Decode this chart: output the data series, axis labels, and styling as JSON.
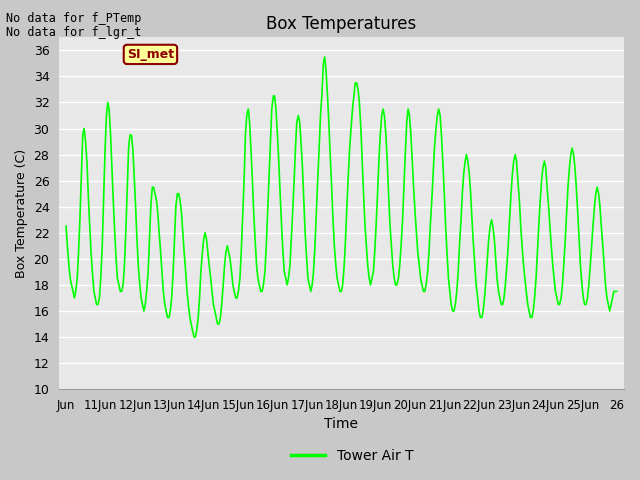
{
  "title": "Box Temperatures",
  "xlabel": "Time",
  "ylabel": "Box Temperature (C)",
  "ylim": [
    10,
    37
  ],
  "yticks": [
    10,
    12,
    14,
    16,
    18,
    20,
    22,
    24,
    26,
    28,
    30,
    32,
    34,
    36
  ],
  "line_color": "#00FF00",
  "line_width": 1.2,
  "plot_bg_color": "#E8E8E8",
  "fig_bg_color": "#C8C8C8",
  "no_data_text1": "No data for f_PTemp",
  "no_data_text2": "No data for f_lgr_t",
  "annotation_text": "SI_met",
  "annotation_bg": "#FFFF99",
  "annotation_border": "#8B0000",
  "legend_label": "Tower Air T",
  "x_tick_labels": [
    "Jun",
    "11Jun",
    "12Jun",
    "13Jun",
    "14Jun",
    "15Jun",
    "16Jun",
    "17Jun",
    "18Jun",
    "19Jun",
    "20Jun",
    "21Jun",
    "22Jun",
    "23Jun",
    "24Jun",
    "25Jun",
    "26"
  ],
  "temperature_data": [
    [
      0.0,
      22.5
    ],
    [
      0.08,
      21.0
    ],
    [
      0.17,
      19.5
    ],
    [
      0.25,
      18.5
    ],
    [
      0.33,
      18.0
    ],
    [
      0.42,
      17.5
    ],
    [
      0.5,
      17.0
    ],
    [
      0.58,
      17.5
    ],
    [
      0.67,
      18.5
    ],
    [
      0.75,
      20.5
    ],
    [
      0.83,
      23.0
    ],
    [
      0.92,
      26.5
    ],
    [
      1.0,
      29.5
    ],
    [
      1.08,
      30.0
    ],
    [
      1.17,
      29.0
    ],
    [
      1.25,
      27.5
    ],
    [
      1.33,
      25.0
    ],
    [
      1.42,
      22.5
    ],
    [
      1.5,
      20.5
    ],
    [
      1.58,
      19.0
    ],
    [
      1.67,
      17.5
    ],
    [
      1.75,
      17.0
    ],
    [
      1.83,
      16.5
    ],
    [
      1.92,
      16.5
    ],
    [
      2.0,
      17.0
    ],
    [
      2.08,
      18.5
    ],
    [
      2.17,
      21.0
    ],
    [
      2.25,
      24.5
    ],
    [
      2.33,
      28.0
    ],
    [
      2.42,
      31.0
    ],
    [
      2.5,
      32.0
    ],
    [
      2.58,
      31.5
    ],
    [
      2.67,
      29.5
    ],
    [
      2.75,
      27.0
    ],
    [
      2.83,
      24.5
    ],
    [
      2.92,
      22.0
    ],
    [
      3.0,
      20.0
    ],
    [
      3.08,
      18.5
    ],
    [
      3.17,
      18.0
    ],
    [
      3.25,
      17.5
    ],
    [
      3.33,
      17.5
    ],
    [
      3.42,
      18.0
    ],
    [
      3.5,
      19.5
    ],
    [
      3.58,
      22.0
    ],
    [
      3.67,
      25.5
    ],
    [
      3.75,
      28.5
    ],
    [
      3.83,
      29.5
    ],
    [
      3.92,
      29.5
    ],
    [
      4.0,
      28.5
    ],
    [
      4.08,
      26.5
    ],
    [
      4.17,
      24.0
    ],
    [
      4.25,
      21.5
    ],
    [
      4.33,
      19.5
    ],
    [
      4.42,
      18.0
    ],
    [
      4.5,
      17.0
    ],
    [
      4.58,
      16.5
    ],
    [
      4.67,
      16.0
    ],
    [
      4.75,
      16.5
    ],
    [
      4.83,
      17.5
    ],
    [
      4.92,
      19.0
    ],
    [
      5.0,
      21.5
    ],
    [
      5.08,
      24.0
    ],
    [
      5.17,
      25.5
    ],
    [
      5.25,
      25.5
    ],
    [
      5.33,
      25.0
    ],
    [
      5.42,
      24.5
    ],
    [
      5.5,
      23.5
    ],
    [
      5.58,
      22.0
    ],
    [
      5.67,
      20.5
    ],
    [
      5.75,
      19.0
    ],
    [
      5.83,
      17.5
    ],
    [
      5.92,
      16.5
    ],
    [
      6.0,
      16.0
    ],
    [
      6.08,
      15.5
    ],
    [
      6.17,
      15.5
    ],
    [
      6.25,
      16.0
    ],
    [
      6.33,
      17.0
    ],
    [
      6.42,
      19.0
    ],
    [
      6.5,
      21.5
    ],
    [
      6.58,
      24.0
    ],
    [
      6.67,
      25.0
    ],
    [
      6.75,
      25.0
    ],
    [
      6.83,
      24.5
    ],
    [
      6.92,
      23.5
    ],
    [
      7.0,
      22.0
    ],
    [
      7.08,
      20.5
    ],
    [
      7.17,
      19.0
    ],
    [
      7.25,
      17.5
    ],
    [
      7.33,
      16.5
    ],
    [
      7.42,
      15.5
    ],
    [
      7.5,
      15.0
    ],
    [
      7.58,
      14.5
    ],
    [
      7.67,
      14.0
    ],
    [
      7.75,
      14.0
    ],
    [
      7.83,
      14.5
    ],
    [
      7.92,
      15.5
    ],
    [
      8.0,
      17.0
    ],
    [
      8.08,
      19.0
    ],
    [
      8.17,
      20.5
    ],
    [
      8.25,
      21.5
    ],
    [
      8.33,
      22.0
    ],
    [
      8.42,
      21.5
    ],
    [
      8.5,
      20.5
    ],
    [
      8.58,
      19.5
    ],
    [
      8.67,
      18.5
    ],
    [
      8.75,
      17.5
    ],
    [
      8.83,
      16.5
    ],
    [
      8.92,
      16.0
    ],
    [
      9.0,
      15.5
    ],
    [
      9.08,
      15.0
    ],
    [
      9.17,
      15.0
    ],
    [
      9.25,
      15.5
    ],
    [
      9.33,
      16.5
    ],
    [
      9.42,
      18.0
    ],
    [
      9.5,
      19.5
    ],
    [
      9.58,
      20.5
    ],
    [
      9.67,
      21.0
    ],
    [
      9.75,
      20.5
    ],
    [
      9.83,
      20.0
    ],
    [
      9.92,
      19.0
    ],
    [
      10.0,
      18.0
    ],
    [
      10.08,
      17.5
    ],
    [
      10.17,
      17.0
    ],
    [
      10.25,
      17.0
    ],
    [
      10.33,
      17.5
    ],
    [
      10.42,
      18.5
    ],
    [
      10.5,
      20.5
    ],
    [
      10.58,
      23.0
    ],
    [
      10.67,
      26.0
    ],
    [
      10.75,
      29.5
    ],
    [
      10.83,
      31.0
    ],
    [
      10.92,
      31.5
    ],
    [
      11.0,
      30.5
    ],
    [
      11.08,
      28.5
    ],
    [
      11.17,
      26.0
    ],
    [
      11.25,
      23.5
    ],
    [
      11.33,
      21.5
    ],
    [
      11.42,
      19.5
    ],
    [
      11.5,
      18.5
    ],
    [
      11.58,
      18.0
    ],
    [
      11.67,
      17.5
    ],
    [
      11.75,
      17.5
    ],
    [
      11.83,
      18.0
    ],
    [
      11.92,
      19.0
    ],
    [
      12.0,
      21.0
    ],
    [
      12.08,
      23.5
    ],
    [
      12.17,
      26.5
    ],
    [
      12.25,
      29.0
    ],
    [
      12.33,
      31.5
    ],
    [
      12.42,
      32.5
    ],
    [
      12.5,
      32.5
    ],
    [
      12.58,
      31.5
    ],
    [
      12.67,
      29.5
    ],
    [
      12.75,
      27.5
    ],
    [
      12.83,
      25.0
    ],
    [
      12.92,
      22.5
    ],
    [
      13.0,
      20.5
    ],
    [
      13.08,
      19.0
    ],
    [
      13.17,
      18.5
    ],
    [
      13.25,
      18.0
    ],
    [
      13.33,
      18.5
    ],
    [
      13.42,
      19.5
    ],
    [
      13.5,
      21.5
    ],
    [
      13.58,
      23.5
    ],
    [
      13.67,
      26.0
    ],
    [
      13.75,
      28.5
    ],
    [
      13.83,
      30.5
    ],
    [
      13.92,
      31.0
    ],
    [
      14.0,
      30.5
    ],
    [
      14.08,
      29.0
    ],
    [
      14.17,
      27.0
    ],
    [
      14.25,
      24.5
    ],
    [
      14.33,
      22.0
    ],
    [
      14.42,
      20.0
    ],
    [
      14.5,
      18.5
    ],
    [
      14.58,
      18.0
    ],
    [
      14.67,
      17.5
    ],
    [
      14.75,
      18.0
    ],
    [
      14.83,
      19.0
    ],
    [
      14.92,
      21.0
    ],
    [
      15.0,
      23.5
    ],
    [
      15.08,
      26.0
    ],
    [
      15.17,
      28.5
    ],
    [
      15.25,
      31.0
    ],
    [
      15.33,
      32.5
    ],
    [
      15.42,
      35.0
    ],
    [
      15.5,
      35.5
    ],
    [
      15.58,
      34.5
    ],
    [
      15.67,
      32.5
    ],
    [
      15.75,
      30.5
    ],
    [
      15.83,
      28.0
    ],
    [
      15.92,
      25.5
    ],
    [
      16.0,
      23.0
    ],
    [
      16.08,
      21.0
    ],
    [
      16.17,
      19.5
    ],
    [
      16.25,
      18.5
    ],
    [
      16.33,
      18.0
    ],
    [
      16.42,
      17.5
    ],
    [
      16.5,
      17.5
    ],
    [
      16.58,
      18.0
    ],
    [
      16.67,
      19.5
    ],
    [
      16.75,
      21.5
    ],
    [
      16.83,
      24.0
    ],
    [
      16.92,
      26.5
    ],
    [
      17.0,
      28.5
    ],
    [
      17.08,
      30.0
    ],
    [
      17.17,
      31.5
    ],
    [
      17.25,
      32.5
    ],
    [
      17.33,
      33.5
    ],
    [
      17.42,
      33.5
    ],
    [
      17.5,
      33.0
    ],
    [
      17.58,
      32.0
    ],
    [
      17.67,
      30.0
    ],
    [
      17.75,
      27.5
    ],
    [
      17.83,
      25.0
    ],
    [
      17.92,
      22.5
    ],
    [
      18.0,
      21.0
    ],
    [
      18.08,
      19.5
    ],
    [
      18.17,
      18.5
    ],
    [
      18.25,
      18.0
    ],
    [
      18.33,
      18.5
    ],
    [
      18.42,
      19.0
    ],
    [
      18.5,
      20.5
    ],
    [
      18.58,
      22.5
    ],
    [
      18.67,
      25.0
    ],
    [
      18.75,
      27.5
    ],
    [
      18.83,
      29.5
    ],
    [
      18.92,
      31.0
    ],
    [
      19.0,
      31.5
    ],
    [
      19.08,
      31.0
    ],
    [
      19.17,
      29.5
    ],
    [
      19.25,
      27.5
    ],
    [
      19.33,
      25.0
    ],
    [
      19.42,
      22.5
    ],
    [
      19.5,
      21.0
    ],
    [
      19.58,
      19.5
    ],
    [
      19.67,
      18.5
    ],
    [
      19.75,
      18.0
    ],
    [
      19.83,
      18.0
    ],
    [
      19.92,
      18.5
    ],
    [
      20.0,
      19.5
    ],
    [
      20.08,
      21.0
    ],
    [
      20.17,
      23.0
    ],
    [
      20.25,
      25.5
    ],
    [
      20.33,
      28.0
    ],
    [
      20.42,
      30.5
    ],
    [
      20.5,
      31.5
    ],
    [
      20.58,
      31.0
    ],
    [
      20.67,
      29.5
    ],
    [
      20.75,
      27.5
    ],
    [
      20.83,
      25.5
    ],
    [
      20.92,
      23.5
    ],
    [
      21.0,
      22.0
    ],
    [
      21.08,
      20.5
    ],
    [
      21.17,
      19.5
    ],
    [
      21.25,
      18.5
    ],
    [
      21.33,
      18.0
    ],
    [
      21.42,
      17.5
    ],
    [
      21.5,
      17.5
    ],
    [
      21.58,
      18.0
    ],
    [
      21.67,
      19.0
    ],
    [
      21.75,
      20.5
    ],
    [
      21.83,
      22.5
    ],
    [
      21.92,
      24.5
    ],
    [
      22.0,
      26.5
    ],
    [
      22.08,
      28.5
    ],
    [
      22.17,
      30.0
    ],
    [
      22.25,
      31.0
    ],
    [
      22.33,
      31.5
    ],
    [
      22.42,
      31.0
    ],
    [
      22.5,
      29.5
    ],
    [
      22.58,
      27.5
    ],
    [
      22.67,
      25.0
    ],
    [
      22.75,
      22.5
    ],
    [
      22.83,
      20.5
    ],
    [
      22.92,
      18.5
    ],
    [
      23.0,
      17.5
    ],
    [
      23.08,
      16.5
    ],
    [
      23.17,
      16.0
    ],
    [
      23.25,
      16.0
    ],
    [
      23.33,
      16.5
    ],
    [
      23.42,
      17.5
    ],
    [
      23.5,
      19.0
    ],
    [
      23.58,
      21.0
    ],
    [
      23.67,
      23.0
    ],
    [
      23.75,
      25.0
    ],
    [
      23.83,
      26.5
    ],
    [
      23.92,
      27.5
    ],
    [
      24.0,
      28.0
    ],
    [
      24.08,
      27.5
    ],
    [
      24.17,
      26.5
    ],
    [
      24.25,
      25.0
    ],
    [
      24.33,
      23.0
    ],
    [
      24.42,
      21.0
    ],
    [
      24.5,
      19.5
    ],
    [
      24.58,
      18.0
    ],
    [
      24.67,
      17.0
    ],
    [
      24.75,
      16.0
    ],
    [
      24.83,
      15.5
    ],
    [
      24.92,
      15.5
    ],
    [
      25.0,
      16.0
    ],
    [
      25.08,
      17.0
    ],
    [
      25.17,
      18.5
    ],
    [
      25.25,
      20.0
    ],
    [
      25.33,
      21.5
    ],
    [
      25.42,
      22.5
    ],
    [
      25.5,
      23.0
    ],
    [
      25.58,
      22.5
    ],
    [
      25.67,
      21.5
    ],
    [
      25.75,
      20.0
    ],
    [
      25.83,
      18.5
    ],
    [
      25.92,
      17.5
    ],
    [
      26.0,
      17.0
    ],
    [
      26.08,
      16.5
    ],
    [
      26.17,
      16.5
    ],
    [
      26.25,
      17.0
    ],
    [
      26.33,
      18.0
    ],
    [
      26.42,
      19.5
    ],
    [
      26.5,
      21.0
    ],
    [
      26.58,
      23.0
    ],
    [
      26.67,
      25.0
    ],
    [
      26.75,
      26.5
    ],
    [
      26.83,
      27.5
    ],
    [
      26.92,
      28.0
    ],
    [
      27.0,
      27.5
    ],
    [
      27.08,
      26.0
    ],
    [
      27.17,
      24.5
    ],
    [
      27.25,
      22.5
    ],
    [
      27.33,
      21.0
    ],
    [
      27.42,
      19.5
    ],
    [
      27.5,
      18.5
    ],
    [
      27.58,
      17.5
    ],
    [
      27.67,
      16.5
    ],
    [
      27.75,
      16.0
    ],
    [
      27.83,
      15.5
    ],
    [
      27.92,
      15.5
    ],
    [
      28.0,
      16.0
    ],
    [
      28.08,
      17.0
    ],
    [
      28.17,
      18.5
    ],
    [
      28.25,
      20.5
    ],
    [
      28.33,
      22.5
    ],
    [
      28.42,
      24.5
    ],
    [
      28.5,
      26.0
    ],
    [
      28.58,
      27.0
    ],
    [
      28.67,
      27.5
    ],
    [
      28.75,
      27.0
    ],
    [
      28.83,
      25.5
    ],
    [
      28.92,
      24.0
    ],
    [
      29.0,
      22.5
    ],
    [
      29.08,
      21.0
    ],
    [
      29.17,
      19.5
    ],
    [
      29.25,
      18.5
    ],
    [
      29.33,
      17.5
    ],
    [
      29.42,
      17.0
    ],
    [
      29.5,
      16.5
    ],
    [
      29.58,
      16.5
    ],
    [
      29.67,
      17.0
    ],
    [
      29.75,
      18.0
    ],
    [
      29.83,
      19.5
    ],
    [
      29.92,
      21.5
    ],
    [
      30.0,
      23.5
    ],
    [
      30.08,
      25.5
    ],
    [
      30.17,
      27.0
    ],
    [
      30.25,
      28.0
    ],
    [
      30.33,
      28.5
    ],
    [
      30.42,
      28.0
    ],
    [
      30.5,
      27.0
    ],
    [
      30.58,
      25.5
    ],
    [
      30.67,
      23.5
    ],
    [
      30.75,
      21.5
    ],
    [
      30.83,
      19.5
    ],
    [
      30.92,
      18.0
    ],
    [
      31.0,
      17.0
    ],
    [
      31.08,
      16.5
    ],
    [
      31.17,
      16.5
    ],
    [
      31.25,
      17.0
    ],
    [
      31.33,
      18.0
    ],
    [
      31.42,
      19.5
    ],
    [
      31.5,
      21.0
    ],
    [
      31.58,
      22.5
    ],
    [
      31.67,
      24.0
    ],
    [
      31.75,
      25.0
    ],
    [
      31.83,
      25.5
    ],
    [
      31.92,
      25.0
    ],
    [
      32.0,
      24.0
    ],
    [
      32.08,
      22.5
    ],
    [
      32.17,
      21.0
    ],
    [
      32.25,
      19.5
    ],
    [
      32.33,
      18.0
    ],
    [
      32.42,
      17.0
    ],
    [
      32.5,
      16.5
    ],
    [
      32.58,
      16.0
    ],
    [
      32.67,
      16.5
    ],
    [
      32.75,
      17.0
    ],
    [
      32.83,
      17.5
    ],
    [
      32.92,
      17.5
    ],
    [
      33.0,
      17.5
    ]
  ]
}
